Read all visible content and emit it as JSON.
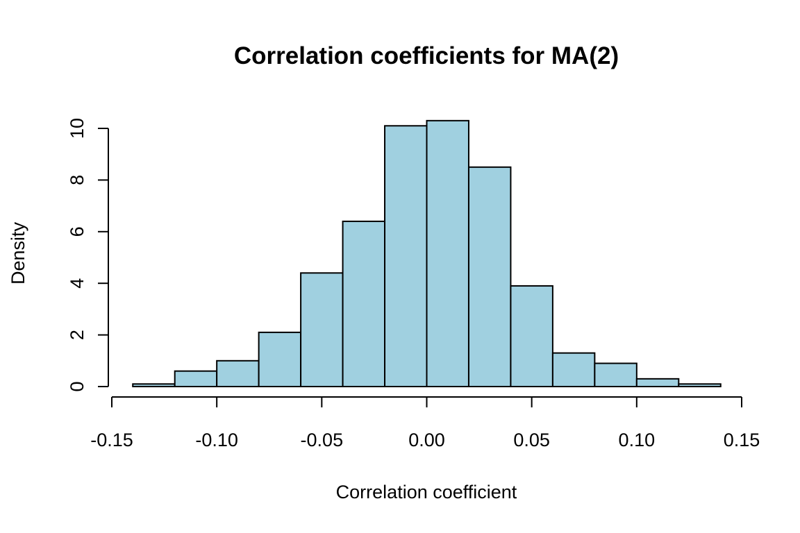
{
  "chart_data": {
    "type": "bar",
    "title": "Correlation coefficients for MA(2)",
    "xlabel": "Correlation coefficient",
    "ylabel": "Density",
    "bar_color": "#a0d0e0",
    "bin_edges": [
      -0.14,
      -0.12,
      -0.1,
      -0.08,
      -0.06,
      -0.04,
      -0.02,
      0.0,
      0.02,
      0.04,
      0.06,
      0.08,
      0.1,
      0.12,
      0.14
    ],
    "values": [
      0.1,
      0.6,
      1.0,
      2.1,
      4.4,
      6.4,
      10.1,
      10.3,
      8.5,
      3.9,
      1.3,
      0.9,
      0.3,
      0.1
    ],
    "xlim": [
      -0.15,
      0.15
    ],
    "ylim": [
      0,
      10
    ],
    "x_ticks": [
      -0.15,
      -0.1,
      -0.05,
      0.0,
      0.05,
      0.1,
      0.15
    ],
    "x_tick_labels": [
      "-0.15",
      "-0.10",
      "-0.05",
      "0.00",
      "0.05",
      "0.10",
      "0.15"
    ],
    "y_ticks": [
      0,
      2,
      4,
      6,
      8,
      10
    ],
    "y_tick_labels": [
      "0",
      "2",
      "4",
      "6",
      "8",
      "10"
    ],
    "grid": false
  }
}
